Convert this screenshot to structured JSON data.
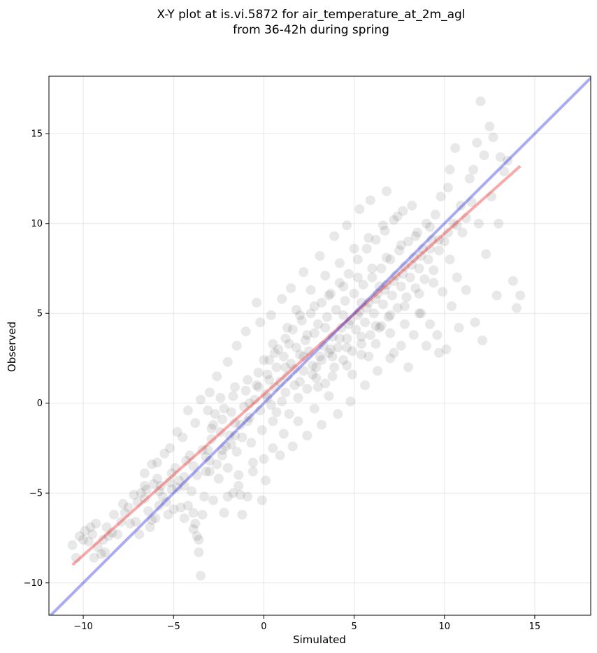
{
  "chart_data": {
    "type": "scatter",
    "title": "X-Y plot at is.vi.5872 for air_temperature_at_2m_agl",
    "subtitle": "from 36-42h during spring",
    "xlabel": "Simulated",
    "ylabel": "Observed",
    "xlim": [
      -11.9,
      18.1
    ],
    "ylim": [
      -11.8,
      18.2
    ],
    "xticks": [
      -10,
      -5,
      0,
      5,
      10,
      15
    ],
    "yticks": [
      -10,
      -5,
      0,
      5,
      10,
      15
    ],
    "xtick_labels": [
      "−10",
      "−5",
      "0",
      "5",
      "10",
      "15"
    ],
    "ytick_labels": [
      "−10",
      "−5",
      "0",
      "5",
      "10",
      "15"
    ],
    "grid": true,
    "point_color": "#000000",
    "point_alpha": 0.09,
    "points": [
      [
        -10.4,
        -8.6
      ],
      [
        -10.6,
        -7.9
      ],
      [
        -10.2,
        -7.4
      ],
      [
        -9.9,
        -7.1
      ],
      [
        -9.6,
        -6.9
      ],
      [
        -9.3,
        -6.7
      ],
      [
        -9.7,
        -7.7
      ],
      [
        -9.2,
        -8.0
      ],
      [
        -9.0,
        -8.4
      ],
      [
        -8.8,
        -8.3
      ],
      [
        -9.4,
        -8.6
      ],
      [
        -8.6,
        -7.4
      ],
      [
        -8.7,
        -6.9
      ],
      [
        -8.4,
        -7.2
      ],
      [
        -8.1,
        -7.3
      ],
      [
        -7.9,
        -6.6
      ],
      [
        -7.7,
        -6.1
      ],
      [
        -7.5,
        -5.8
      ],
      [
        -7.4,
        -6.7
      ],
      [
        -7.1,
        -6.6
      ],
      [
        -7.0,
        -5.5
      ],
      [
        -6.8,
        -5.0
      ],
      [
        -6.6,
        -5.3
      ],
      [
        -6.5,
        -4.8
      ],
      [
        -6.4,
        -6.0
      ],
      [
        -6.2,
        -6.5
      ],
      [
        -6.0,
        -6.4
      ],
      [
        -6.1,
        -4.5
      ],
      [
        -5.9,
        -4.2
      ],
      [
        -5.7,
        -4.6
      ],
      [
        -5.6,
        -5.2
      ],
      [
        -5.4,
        -5.5
      ],
      [
        -5.2,
        -4.4
      ],
      [
        -5.1,
        -3.9
      ],
      [
        -4.9,
        -3.6
      ],
      [
        -4.8,
        -4.7
      ],
      [
        -4.6,
        -5.8
      ],
      [
        -4.4,
        -4.1
      ],
      [
        -4.3,
        -3.2
      ],
      [
        -4.1,
        -2.9
      ],
      [
        -4.0,
        -4.9
      ],
      [
        -3.9,
        -6.1
      ],
      [
        -3.8,
        -6.7
      ],
      [
        -3.7,
        -7.4
      ],
      [
        -3.6,
        -8.3
      ],
      [
        -3.5,
        -9.6
      ],
      [
        -3.4,
        -6.2
      ],
      [
        -3.3,
        -5.2
      ],
      [
        -3.2,
        -3.0
      ],
      [
        -3.1,
        -2.6
      ],
      [
        -3.0,
        -3.8
      ],
      [
        -2.9,
        -2.0
      ],
      [
        -2.8,
        -1.2
      ],
      [
        -2.7,
        -0.6
      ],
      [
        -2.6,
        -3.4
      ],
      [
        -2.5,
        -4.2
      ],
      [
        -2.4,
        -1.6
      ],
      [
        -2.3,
        -0.9
      ],
      [
        -2.2,
        -0.3
      ],
      [
        -2.1,
        -2.4
      ],
      [
        -2.0,
        -3.6
      ],
      [
        -1.9,
        -1.8
      ],
      [
        -1.8,
        -0.5
      ],
      [
        -1.7,
        0.4
      ],
      [
        -1.6,
        -1.1
      ],
      [
        -1.5,
        -2.7
      ],
      [
        -1.4,
        -4.0
      ],
      [
        -1.3,
        -5.1
      ],
      [
        -1.2,
        -1.9
      ],
      [
        -1.1,
        -0.2
      ],
      [
        -1.0,
        0.7
      ],
      [
        -0.9,
        1.3
      ],
      [
        -0.8,
        -0.8
      ],
      [
        -0.7,
        -2.2
      ],
      [
        -0.6,
        -3.3
      ],
      [
        -0.5,
        0.2
      ],
      [
        -0.4,
        1.0
      ],
      [
        -0.3,
        1.7
      ],
      [
        -0.2,
        -0.4
      ],
      [
        -0.1,
        -1.5
      ],
      [
        0.0,
        -3.1
      ],
      [
        0.1,
        0.5
      ],
      [
        0.2,
        1.6
      ],
      [
        0.3,
        2.4
      ],
      [
        0.4,
        -0.1
      ],
      [
        0.5,
        -1.0
      ],
      [
        0.6,
        0.9
      ],
      [
        0.7,
        2.0
      ],
      [
        0.8,
        3.0
      ],
      [
        0.9,
        1.2
      ],
      [
        1.0,
        0.1
      ],
      [
        1.1,
        2.6
      ],
      [
        1.2,
        3.6
      ],
      [
        1.3,
        1.5
      ],
      [
        1.4,
        -0.6
      ],
      [
        1.5,
        2.2
      ],
      [
        1.6,
        4.1
      ],
      [
        1.7,
        1.0
      ],
      [
        1.8,
        3.1
      ],
      [
        1.9,
        0.3
      ],
      [
        2.0,
        2.7
      ],
      [
        2.1,
        4.6
      ],
      [
        2.2,
        1.8
      ],
      [
        2.3,
        3.5
      ],
      [
        2.4,
        0.8
      ],
      [
        2.5,
        2.9
      ],
      [
        2.6,
        5.0
      ],
      [
        2.7,
        2.1
      ],
      [
        2.8,
        3.9
      ],
      [
        2.9,
        1.4
      ],
      [
        3.0,
        4.4
      ],
      [
        3.1,
        2.6
      ],
      [
        3.2,
        5.6
      ],
      [
        3.3,
        3.2
      ],
      [
        3.4,
        1.1
      ],
      [
        3.5,
        4.8
      ],
      [
        3.6,
        2.8
      ],
      [
        3.7,
        6.1
      ],
      [
        3.8,
        3.7
      ],
      [
        3.9,
        2.0
      ],
      [
        4.0,
        5.2
      ],
      [
        4.1,
        3.1
      ],
      [
        4.2,
        6.7
      ],
      [
        4.3,
        4.2
      ],
      [
        4.4,
        2.4
      ],
      [
        4.5,
        5.7
      ],
      [
        4.6,
        3.6
      ],
      [
        4.7,
        7.2
      ],
      [
        4.8,
        4.6
      ],
      [
        4.9,
        2.9
      ],
      [
        5.0,
        6.1
      ],
      [
        5.1,
        4.1
      ],
      [
        5.2,
        8.0
      ],
      [
        5.3,
        5.1
      ],
      [
        5.4,
        3.3
      ],
      [
        5.5,
        6.6
      ],
      [
        5.6,
        4.5
      ],
      [
        5.7,
        8.6
      ],
      [
        5.8,
        5.6
      ],
      [
        5.9,
        3.8
      ],
      [
        6.0,
        7.0
      ],
      [
        6.1,
        5.0
      ],
      [
        6.2,
        9.1
      ],
      [
        6.3,
        6.1
      ],
      [
        6.4,
        4.2
      ],
      [
        6.5,
        7.5
      ],
      [
        6.6,
        5.5
      ],
      [
        6.7,
        9.6
      ],
      [
        6.8,
        6.6
      ],
      [
        6.9,
        4.8
      ],
      [
        7.0,
        8.0
      ],
      [
        7.1,
        6.0
      ],
      [
        7.2,
        10.2
      ],
      [
        7.3,
        7.1
      ],
      [
        7.4,
        5.3
      ],
      [
        7.5,
        8.5
      ],
      [
        7.6,
        6.5
      ],
      [
        7.7,
        10.7
      ],
      [
        7.8,
        7.6
      ],
      [
        7.9,
        5.9
      ],
      [
        8.0,
        9.0
      ],
      [
        8.1,
        7.0
      ],
      [
        8.2,
        11.0
      ],
      [
        8.3,
        8.1
      ],
      [
        8.4,
        6.4
      ],
      [
        8.5,
        9.5
      ],
      [
        8.6,
        7.5
      ],
      [
        8.7,
        5.0
      ],
      [
        8.8,
        8.6
      ],
      [
        8.9,
        6.9
      ],
      [
        9.0,
        10.0
      ],
      [
        9.1,
        8.0
      ],
      [
        9.2,
        4.4
      ],
      [
        9.3,
        9.1
      ],
      [
        9.4,
        7.4
      ],
      [
        9.5,
        10.5
      ],
      [
        9.6,
        3.8
      ],
      [
        9.7,
        8.5
      ],
      [
        9.8,
        11.5
      ],
      [
        9.9,
        6.2
      ],
      [
        10.0,
        9.0
      ],
      [
        10.1,
        3.0
      ],
      [
        10.2,
        12.0
      ],
      [
        10.3,
        8.0
      ],
      [
        10.4,
        5.4
      ],
      [
        10.5,
        10.0
      ],
      [
        10.6,
        14.2
      ],
      [
        10.7,
        7.0
      ],
      [
        10.8,
        4.2
      ],
      [
        10.9,
        11.0
      ],
      [
        11.0,
        9.5
      ],
      [
        11.2,
        6.3
      ],
      [
        11.4,
        12.5
      ],
      [
        11.6,
        13.0
      ],
      [
        11.7,
        4.5
      ],
      [
        11.8,
        14.5
      ],
      [
        11.9,
        10.0
      ],
      [
        12.0,
        16.8
      ],
      [
        12.1,
        3.5
      ],
      [
        12.2,
        13.8
      ],
      [
        12.3,
        8.3
      ],
      [
        12.5,
        15.4
      ],
      [
        12.7,
        14.8
      ],
      [
        12.9,
        6.0
      ],
      [
        13.1,
        13.7
      ],
      [
        13.3,
        12.9
      ],
      [
        13.5,
        13.5
      ],
      [
        13.8,
        6.8
      ],
      [
        14.0,
        5.3
      ],
      [
        14.2,
        6.0
      ],
      [
        13.0,
        10.0
      ],
      [
        12.6,
        11.5
      ],
      [
        11.5,
        11.2
      ],
      [
        10.3,
        13.0
      ],
      [
        -0.2,
        4.5
      ],
      [
        -1.0,
        4.0
      ],
      [
        -1.5,
        3.2
      ],
      [
        -2.0,
        2.3
      ],
      [
        -2.6,
        1.5
      ],
      [
        -3.0,
        0.6
      ],
      [
        -3.5,
        0.2
      ],
      [
        -4.2,
        -0.4
      ],
      [
        -4.8,
        -1.6
      ],
      [
        -5.5,
        -2.8
      ],
      [
        -6.2,
        -3.4
      ],
      [
        -0.4,
        5.6
      ],
      [
        0.4,
        4.9
      ],
      [
        1.0,
        5.8
      ],
      [
        1.5,
        6.4
      ],
      [
        2.2,
        7.3
      ],
      [
        3.1,
        8.2
      ],
      [
        3.9,
        9.3
      ],
      [
        4.6,
        9.9
      ],
      [
        5.3,
        10.8
      ],
      [
        5.9,
        11.3
      ],
      [
        6.8,
        11.8
      ],
      [
        -3.2,
        -3.8
      ],
      [
        -2.8,
        -5.4
      ],
      [
        -2.2,
        -6.1
      ],
      [
        -1.7,
        -5.0
      ],
      [
        -1.2,
        -6.2
      ],
      [
        -0.9,
        -5.2
      ],
      [
        -0.1,
        -5.4
      ],
      [
        0.1,
        -4.3
      ],
      [
        0.9,
        -2.9
      ],
      [
        1.6,
        -2.4
      ],
      [
        2.4,
        -1.8
      ],
      [
        3.2,
        -1.2
      ],
      [
        4.1,
        -0.6
      ],
      [
        4.8,
        0.1
      ],
      [
        5.6,
        1.0
      ],
      [
        6.3,
        1.8
      ],
      [
        7.0,
        2.5
      ],
      [
        7.6,
        3.2
      ],
      [
        8.3,
        3.8
      ],
      [
        9.0,
        3.2
      ],
      [
        9.7,
        2.8
      ],
      [
        8.0,
        2.0
      ],
      [
        7.2,
        2.8
      ],
      [
        6.5,
        4.3
      ],
      [
        5.8,
        2.6
      ],
      [
        4.9,
        1.6
      ],
      [
        3.6,
        0.4
      ],
      [
        2.8,
        -0.3
      ],
      [
        1.9,
        -1.0
      ],
      [
        1.1,
        -1.7
      ],
      [
        0.5,
        -2.5
      ],
      [
        -0.6,
        -3.8
      ],
      [
        -1.4,
        -4.6
      ],
      [
        -2.0,
        -5.2
      ],
      [
        -4.4,
        -6.4
      ],
      [
        -3.9,
        -7.0
      ],
      [
        -3.6,
        -7.6
      ],
      [
        -4.2,
        -5.7
      ],
      [
        -5.0,
        -5.9
      ],
      [
        -5.8,
        -4.9
      ],
      [
        -6.6,
        -4.6
      ],
      [
        -7.2,
        -5.1
      ],
      [
        -7.8,
        -5.6
      ],
      [
        -8.3,
        -6.2
      ],
      [
        -8.9,
        -7.6
      ],
      [
        -9.5,
        -7.3
      ],
      [
        -10.0,
        -7.6
      ],
      [
        -6.9,
        -7.3
      ],
      [
        -6.3,
        -6.9
      ],
      [
        -5.3,
        -6.2
      ],
      [
        -4.7,
        -4.3
      ],
      [
        -3.9,
        -3.5
      ],
      [
        -3.4,
        -2.6
      ],
      [
        -2.9,
        -1.4
      ],
      [
        -2.3,
        -2.9
      ],
      [
        -1.8,
        -2.3
      ],
      [
        -1.3,
        -1.2
      ],
      [
        -0.8,
        0.0
      ],
      [
        -0.3,
        0.9
      ],
      [
        0.2,
        0.3
      ],
      [
        0.7,
        -0.5
      ],
      [
        1.2,
        0.6
      ],
      [
        1.7,
        1.9
      ],
      [
        2.2,
        2.6
      ],
      [
        2.7,
        1.6
      ],
      [
        3.2,
        2.4
      ],
      [
        3.7,
        3.0
      ],
      [
        4.2,
        3.6
      ],
      [
        4.7,
        4.4
      ],
      [
        5.2,
        4.9
      ],
      [
        5.7,
        5.3
      ],
      [
        6.2,
        5.8
      ],
      [
        6.7,
        6.3
      ],
      [
        7.2,
        6.8
      ],
      [
        7.7,
        7.2
      ],
      [
        8.2,
        7.7
      ],
      [
        8.7,
        8.2
      ],
      [
        9.2,
        8.6
      ],
      [
        9.7,
        9.1
      ],
      [
        10.2,
        9.5
      ],
      [
        10.7,
        9.9
      ],
      [
        11.2,
        10.3
      ],
      [
        0.5,
        3.3
      ],
      [
        1.3,
        4.2
      ],
      [
        2.0,
        4.9
      ],
      [
        2.8,
        5.4
      ],
      [
        3.6,
        6.0
      ],
      [
        4.4,
        6.5
      ],
      [
        5.2,
        7.0
      ],
      [
        6.0,
        7.5
      ],
      [
        6.8,
        8.1
      ],
      [
        7.6,
        8.8
      ],
      [
        8.4,
        9.3
      ],
      [
        9.2,
        9.8
      ],
      [
        0.3,
        1.3
      ],
      [
        1.2,
        2.0
      ],
      [
        2.0,
        1.2
      ],
      [
        2.9,
        2.0
      ],
      [
        3.8,
        2.6
      ],
      [
        4.6,
        3.1
      ],
      [
        5.4,
        3.7
      ],
      [
        6.2,
        4.3
      ],
      [
        7.0,
        4.9
      ],
      [
        7.8,
        5.4
      ],
      [
        8.6,
        6.1
      ],
      [
        9.4,
        6.7
      ],
      [
        -1.6,
        0.9
      ],
      [
        -2.4,
        0.3
      ],
      [
        -3.1,
        -0.4
      ],
      [
        -3.8,
        -1.1
      ],
      [
        -4.5,
        -1.9
      ],
      [
        -5.2,
        -2.5
      ],
      [
        -5.9,
        -3.3
      ],
      [
        -6.6,
        -3.9
      ],
      [
        -0.9,
        -1.0
      ],
      [
        -1.6,
        -1.8
      ],
      [
        -2.3,
        -2.6
      ],
      [
        -3.0,
        -3.2
      ],
      [
        -3.7,
        -4.0
      ],
      [
        -4.4,
        -4.6
      ],
      [
        -5.1,
        -4.8
      ],
      [
        -5.8,
        -5.7
      ],
      [
        1.8,
        5.2
      ],
      [
        2.6,
        6.3
      ],
      [
        3.4,
        7.1
      ],
      [
        4.2,
        7.8
      ],
      [
        5.0,
        8.6
      ],
      [
        5.8,
        9.2
      ],
      [
        6.6,
        9.9
      ],
      [
        7.4,
        10.4
      ],
      [
        3.0,
        0.9
      ],
      [
        3.8,
        1.5
      ],
      [
        4.6,
        2.1
      ],
      [
        5.4,
        2.7
      ],
      [
        6.2,
        3.3
      ],
      [
        7.0,
        3.9
      ],
      [
        7.8,
        4.4
      ],
      [
        8.6,
        5.0
      ],
      [
        0.0,
        2.4
      ],
      [
        0.6,
        2.8
      ],
      [
        1.4,
        3.3
      ],
      [
        2.4,
        3.8
      ],
      [
        3.4,
        4.2
      ],
      [
        4.4,
        4.9
      ],
      [
        5.4,
        5.6
      ],
      [
        6.4,
        6.5
      ]
    ],
    "series": [
      {
        "type": "regression-line",
        "color": "#ee3333",
        "alpha": 0.42,
        "x": [
          -10.6,
          14.2
        ],
        "y": [
          -9.0,
          13.2
        ]
      },
      {
        "type": "identity-line",
        "color": "#2222dd",
        "alpha": 0.38,
        "x": [
          -11.9,
          18.1
        ],
        "y": [
          -11.9,
          18.1
        ]
      }
    ]
  }
}
